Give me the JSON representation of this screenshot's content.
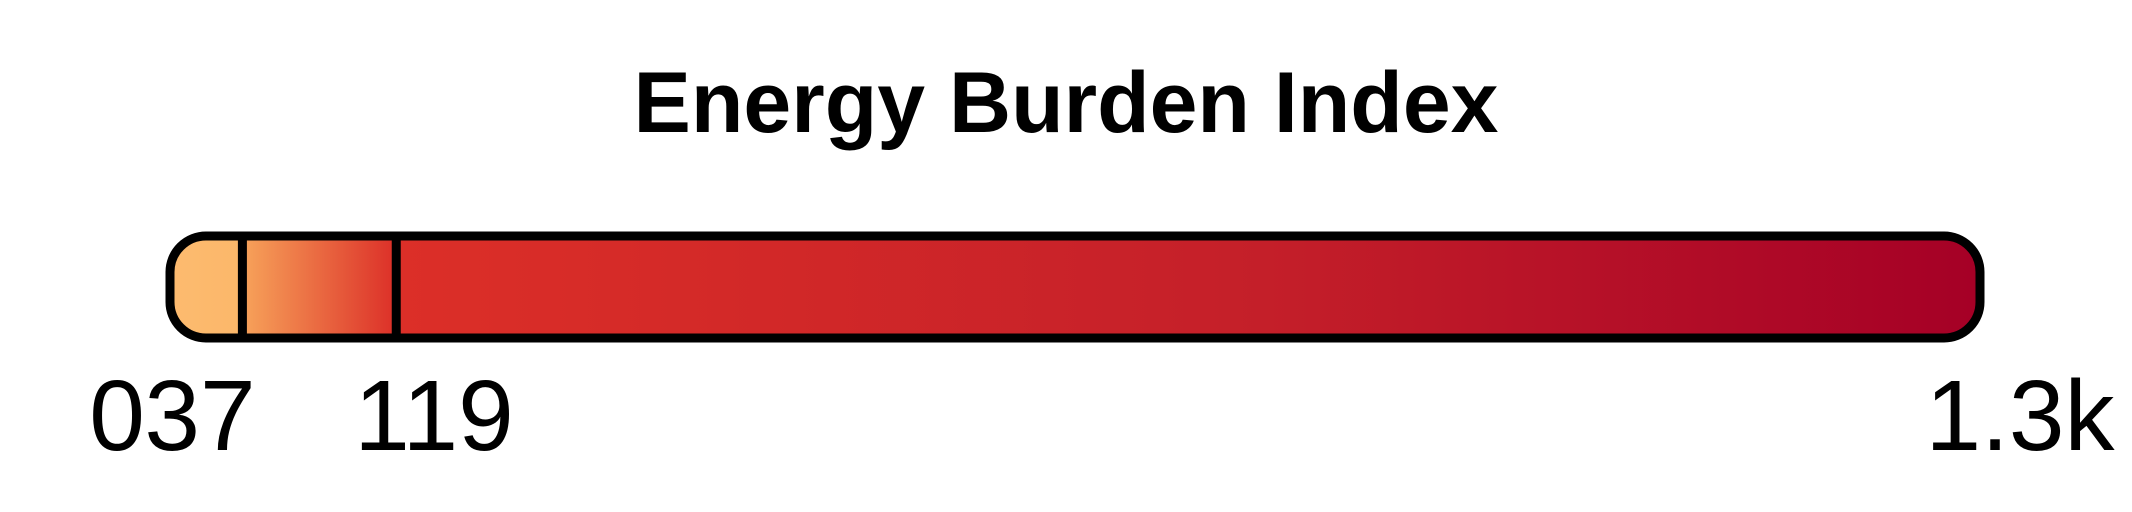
{
  "chart_data": {
    "type": "legend",
    "title": "Energy Burden Index",
    "domain": [
      0,
      1300
    ],
    "scale": "piecewise-quantile",
    "thresholds": [
      {
        "value": 0,
        "label": "0"
      },
      {
        "value": 37,
        "label": "37"
      },
      {
        "value": 119,
        "label": "119"
      },
      {
        "value": 1300,
        "label": "1.3k"
      }
    ],
    "colors": {
      "low": "#fdbb6f",
      "mid": "#dc2f28",
      "high": "#a50026",
      "outline": "#000000",
      "tick": "#000000"
    }
  }
}
